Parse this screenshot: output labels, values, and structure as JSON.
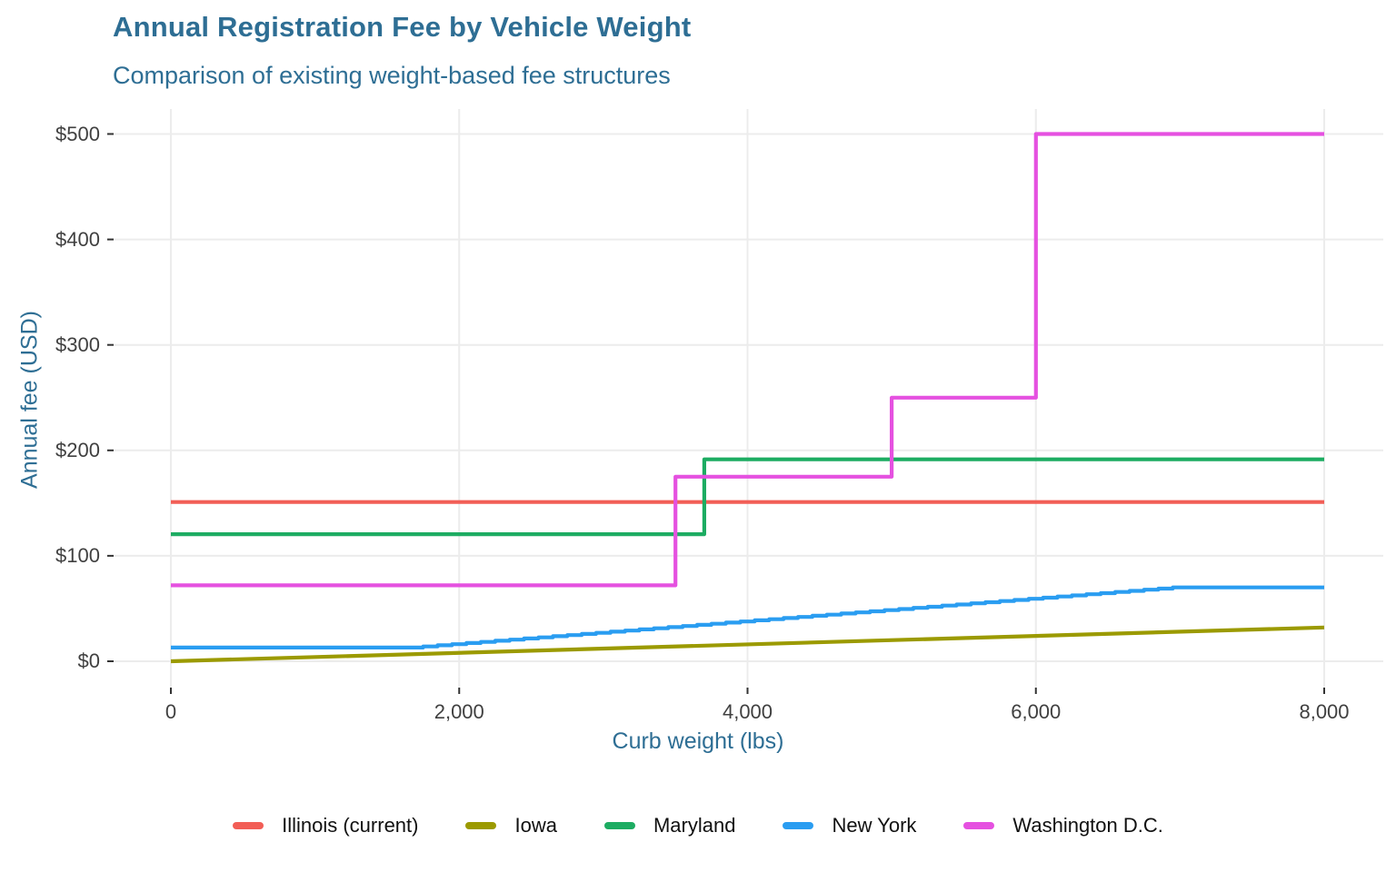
{
  "header": {
    "title": "Annual Registration Fee by Vehicle Weight",
    "subtitle": "Comparison of existing weight-based fee structures"
  },
  "colors": {
    "title_text": "#2E6E94",
    "axis_text": "#404040",
    "legend_text": "#111111",
    "gridline": "#ECECEC",
    "tick_mark": "#333333",
    "background": "#FFFFFF"
  },
  "chart_data": {
    "type": "line",
    "title": "Annual Registration Fee by Vehicle Weight",
    "subtitle": "Comparison of existing weight-based fee structures",
    "xlabel": "Curb weight (lbs)",
    "ylabel": "Annual fee (USD)",
    "xlim": [
      0,
      8000
    ],
    "ylim": [
      0,
      500
    ],
    "grid": "major gridlines only, light gray on white panel",
    "legend_position": "bottom",
    "x_ticks": [
      {
        "value": 0,
        "label": "0"
      },
      {
        "value": 2000,
        "label": "2,000"
      },
      {
        "value": 4000,
        "label": "4,000"
      },
      {
        "value": 6000,
        "label": "6,000"
      },
      {
        "value": 8000,
        "label": "8,000"
      }
    ],
    "y_ticks": [
      {
        "value": 0,
        "label": "$0"
      },
      {
        "value": 100,
        "label": "$100"
      },
      {
        "value": 200,
        "label": "$200"
      },
      {
        "value": 300,
        "label": "$300"
      },
      {
        "value": 400,
        "label": "$400"
      },
      {
        "value": 500,
        "label": "$500"
      }
    ],
    "series": [
      {
        "name": "Illinois (current)",
        "color": "#F25E56",
        "shape": "flat",
        "points": [
          [
            0,
            151
          ],
          [
            8000,
            151
          ]
        ]
      },
      {
        "name": "Iowa",
        "color": "#9B9A00",
        "shape": "linear",
        "points": [
          [
            0,
            0
          ],
          [
            8000,
            32
          ]
        ]
      },
      {
        "name": "Maryland",
        "color": "#1DAC62",
        "shape": "step",
        "points": [
          [
            0,
            120.5
          ],
          [
            3700,
            120.5
          ],
          [
            3700,
            191.5
          ],
          [
            8000,
            191.5
          ]
        ]
      },
      {
        "name": "New York",
        "color": "#2A9DF1",
        "shape": "staircase",
        "step_every_lbs": 100,
        "points": [
          [
            0,
            13
          ],
          [
            1650,
            13
          ],
          [
            6950,
            70
          ],
          [
            8000,
            70
          ]
        ]
      },
      {
        "name": "Washington D.C.",
        "color": "#E551E0",
        "shape": "step",
        "points": [
          [
            0,
            72
          ],
          [
            3500,
            72
          ],
          [
            3500,
            175
          ],
          [
            5000,
            175
          ],
          [
            5000,
            250
          ],
          [
            6000,
            250
          ],
          [
            6000,
            500
          ],
          [
            8000,
            500
          ]
        ]
      }
    ]
  }
}
